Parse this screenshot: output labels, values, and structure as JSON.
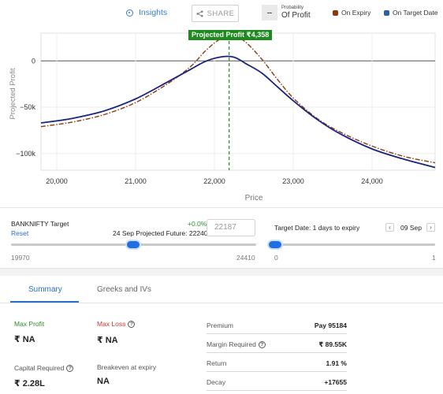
{
  "header": {
    "insights_label": "Insights",
    "share_label": "SHARE",
    "probability_value": "--",
    "probability_small": "Probability",
    "probability_label": "Of Profit",
    "legend": [
      {
        "label": "On Expiry",
        "color": "#8b3a0f"
      },
      {
        "label": "On Target Date",
        "color": "#2e5fa6"
      }
    ]
  },
  "chart_data": {
    "type": "line",
    "xlabel": "Price",
    "ylabel": "Projected Profit",
    "xlim": [
      19800,
      24800
    ],
    "ylim": [
      -118000,
      30000
    ],
    "x_ticks": [
      "20,000",
      "21,000",
      "22,000",
      "23,000",
      "24,000"
    ],
    "y_ticks": [
      "0",
      "−50k",
      "−100k"
    ],
    "projected_profit_label": "Projected Profit ₹4,358",
    "projected_price": 22187,
    "series": [
      {
        "name": "On Expiry",
        "color": "#8b3a0f",
        "style": "dash-dot",
        "x": [
          19800,
          20200,
          20600,
          21000,
          21400,
          21700,
          21900,
          22100,
          22250,
          22400,
          22600,
          22800,
          23000,
          23300,
          23600,
          24000,
          24400,
          24800
        ],
        "y": [
          -71000,
          -66000,
          -58000,
          -45000,
          -25000,
          -6000,
          12000,
          25000,
          27000,
          20000,
          2000,
          -20000,
          -40000,
          -62000,
          -77000,
          -92000,
          -103000,
          -110000
        ]
      },
      {
        "name": "On Target Date",
        "color": "#1a237e",
        "style": "solid",
        "x": [
          19800,
          20200,
          20600,
          21000,
          21400,
          21700,
          21900,
          22100,
          22250,
          22400,
          22600,
          22800,
          23000,
          23300,
          23600,
          24000,
          24400,
          24800
        ],
        "y": [
          -67000,
          -62000,
          -54000,
          -41000,
          -23000,
          -9000,
          0,
          4500,
          4000,
          -3000,
          -13000,
          -28000,
          -43000,
          -63000,
          -79000,
          -95000,
          -106000,
          -115000
        ]
      }
    ]
  },
  "sliders": {
    "underlying_label": "BANKNIFTY Target",
    "reset_label": "Reset",
    "change_pct": "+0.0%",
    "projected_future": "24 Sep Projected Future: 22240",
    "target_value": "22187",
    "min_label": "19970",
    "max_label": "24410",
    "underlying_position": 0.5,
    "target_date_label": "Target Date: 1 days to expiry",
    "prev_label": "‹",
    "next_label": "›",
    "date_value": "09 Sep",
    "date_min": "0",
    "date_max": "1",
    "date_position": 0
  },
  "tabs": [
    {
      "label": "Summary",
      "active": true
    },
    {
      "label": "Greeks and IVs",
      "active": false
    }
  ],
  "summary": {
    "max_profit_label": "Max Profit",
    "max_profit_value": "₹ NA",
    "max_loss_label": "Max Loss",
    "max_loss_value": "₹ NA",
    "capital_label": "Capital Required",
    "capital_value": "₹ 2.28L",
    "breakeven_label": "Breakeven at expiry",
    "breakeven_value": "NA",
    "rows": [
      {
        "label": "Premium",
        "value": "Pay 95184"
      },
      {
        "label": "Margin Required",
        "value": "₹ 89.55K"
      },
      {
        "label": "Return",
        "value": "1.91 %"
      },
      {
        "label": "Decay",
        "value": "+17655"
      }
    ]
  }
}
